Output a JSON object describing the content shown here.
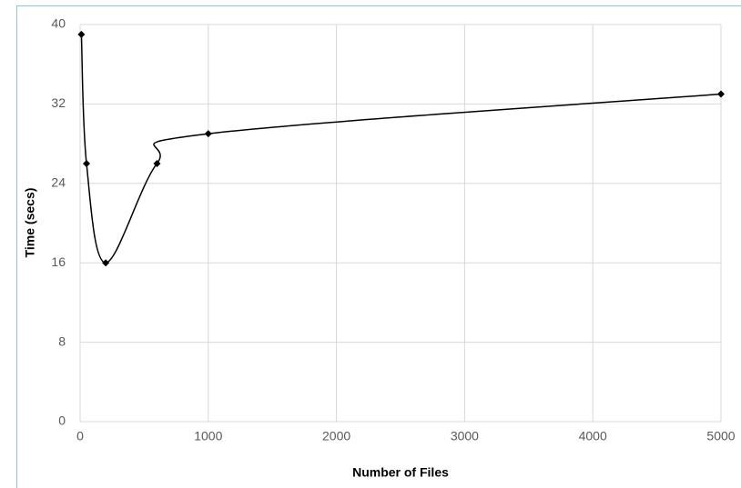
{
  "chart_data": {
    "type": "line",
    "x_label": "Number of Files",
    "y_label": "Time (secs)",
    "x": [
      10,
      50,
      200,
      600,
      1000,
      5000
    ],
    "series": [
      {
        "color": "#000000",
        "values": [
          39,
          26,
          16,
          26,
          29,
          33
        ]
      }
    ],
    "smooth": true,
    "marker": "diamond",
    "xlim": [
      0,
      5000
    ],
    "xticks": [
      0,
      1000,
      2000,
      3000,
      4000,
      5000
    ],
    "ylim": [
      0,
      40
    ],
    "yticks": [
      0,
      8,
      16,
      24,
      32,
      40
    ],
    "grid": true
  }
}
